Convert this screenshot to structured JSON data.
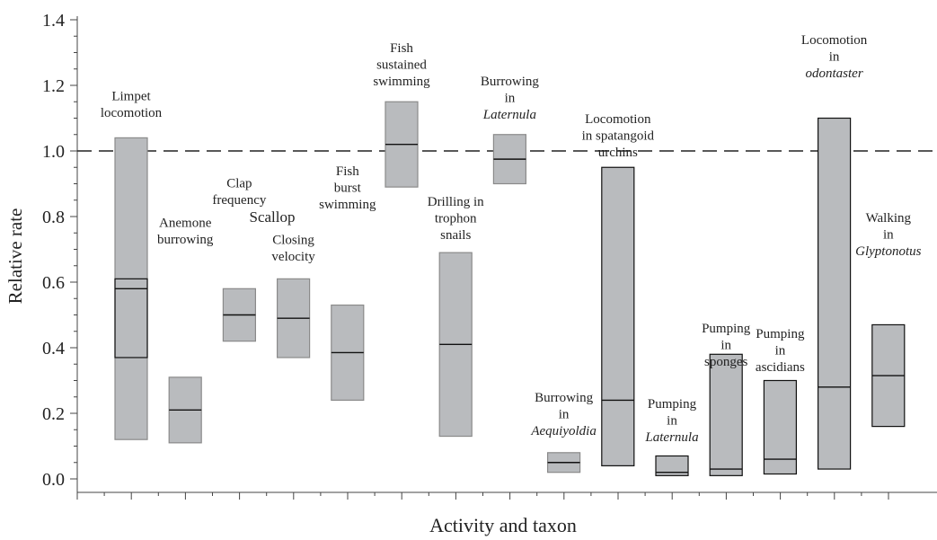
{
  "chart_data": {
    "type": "range",
    "xlabel": "Activity and taxon",
    "ylabel": "Relative rate",
    "ylim": [
      -0.04,
      1.4
    ],
    "yticks": [
      {
        "value": 0,
        "label": "0.0"
      },
      0.2,
      0.4,
      0.6,
      0.8,
      {
        "value": 1,
        "label": "1.0"
      },
      1.2,
      1.4
    ],
    "reference": 1,
    "fill": "#b9bbbe",
    "group_labels": [
      "Scallop"
    ],
    "bars": [
      {
        "label": [
          "Limpet",
          "locomotion"
        ],
        "low": 0.12,
        "high": 1.04,
        "median": 0.58,
        "inner": [
          0.37,
          0.61
        ],
        "border": "#8a8a8a"
      },
      {
        "label": [
          "Anemone",
          "burrowing"
        ],
        "low": 0.11,
        "high": 0.31,
        "median": 0.21,
        "border": "#8a8a8a"
      },
      {
        "label": [
          "Clap",
          "frequency"
        ],
        "low": 0.42,
        "high": 0.58,
        "median": 0.5,
        "border": "#8a8a8a"
      },
      {
        "label": [
          "Closing",
          "velocity"
        ],
        "low": 0.37,
        "high": 0.61,
        "median": 0.49,
        "border": "#8a8a8a"
      },
      {
        "label": [
          "Fish",
          "burst",
          "swimming"
        ],
        "low": 0.24,
        "high": 0.53,
        "median": 0.385,
        "border": "#8a8a8a"
      },
      {
        "label": [
          "Fish",
          "sustained",
          "swimming"
        ],
        "low": 0.89,
        "high": 1.15,
        "median": 1.02,
        "border": "#8a8a8a"
      },
      {
        "label": [
          "Drilling in",
          "trophon",
          "snails"
        ],
        "low": 0.13,
        "high": 0.69,
        "median": 0.41,
        "border": "#8a8a8a"
      },
      {
        "label": [
          "Burrowing",
          "in",
          "Laternula"
        ],
        "italic_line": 2,
        "low": 0.9,
        "high": 1.05,
        "median": 0.975,
        "border": "#8a8a8a"
      },
      {
        "label": [
          "Burrowing",
          "in",
          "Aequiyoldia"
        ],
        "italic_line": 2,
        "low": 0.02,
        "high": 0.08,
        "median": 0.05,
        "border": "#8a8a8a"
      },
      {
        "label": [
          "Locomotion",
          "in spatangoid",
          "urchins"
        ],
        "low": 0.04,
        "high": 0.95,
        "median": 0.24,
        "border": "#111111"
      },
      {
        "label": [
          "Pumping",
          "in",
          "Laternula"
        ],
        "italic_line": 2,
        "low": 0.01,
        "high": 0.07,
        "median": 0.02,
        "border": "#111111"
      },
      {
        "label": [
          "Pumping",
          "in",
          "sponges"
        ],
        "low": 0.01,
        "high": 0.38,
        "median": 0.03,
        "border": "#111111"
      },
      {
        "label": [
          "Pumping",
          "in",
          "ascidians"
        ],
        "low": 0.015,
        "high": 0.3,
        "median": 0.06,
        "border": "#111111"
      },
      {
        "label": [
          "Locomotion",
          "in",
          "odontaster"
        ],
        "italic_line": 2,
        "low": 0.03,
        "high": 1.1,
        "median": 0.28,
        "border": "#111111"
      },
      {
        "label": [
          "Walking",
          "in",
          "Glyptonotus"
        ],
        "italic_line": 2,
        "low": 0.16,
        "high": 0.47,
        "median": 0.315,
        "border": "#111111"
      }
    ]
  }
}
